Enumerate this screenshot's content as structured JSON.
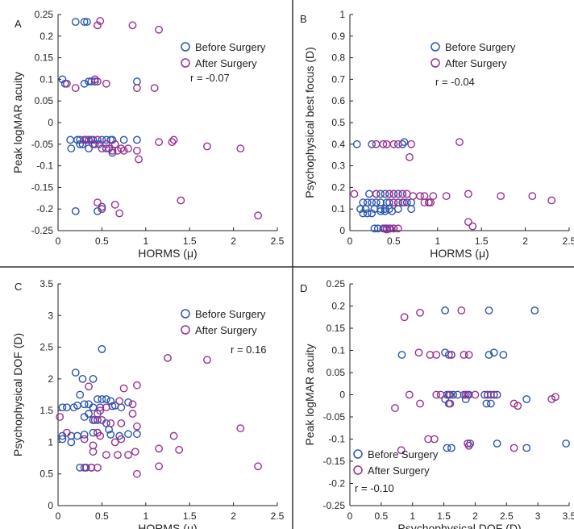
{
  "colors": {
    "before": "#2a55b0",
    "after": "#9a2f8f",
    "axis": "#222222",
    "divider": "#333333"
  },
  "chart_data": [
    {
      "panel": "A",
      "type": "scatter",
      "xlabel": "HORMS (μ)",
      "ylabel": "Peak logMAR acuity",
      "xlim": [
        0,
        2.5
      ],
      "ylim": [
        -0.25,
        0.25
      ],
      "xticks": [
        "0",
        "0.5",
        "1",
        "1.5",
        "2",
        "2.5"
      ],
      "yticks": [
        "-0.25",
        "-0.2",
        "-0.15",
        "-0.1",
        "-0.05",
        "0",
        "0.05",
        "0.1",
        "0.15",
        "0.2",
        "0.25"
      ],
      "annotation": "r = -0.07",
      "legend_position": "top-right",
      "series": [
        {
          "name": "Before Surgery",
          "color": "#2a55b0",
          "x": [
            0.2,
            0.3,
            0.33,
            0.05,
            0.08,
            0.3,
            0.35,
            0.38,
            0.42,
            0.9,
            0.14,
            0.22,
            0.25,
            0.3,
            0.32,
            0.35,
            0.38,
            0.4,
            0.45,
            0.5,
            0.55,
            0.6,
            0.62,
            0.75,
            0.9,
            0.15,
            0.25,
            0.28,
            0.35,
            0.42,
            0.47,
            0.55,
            0.62,
            0.2,
            0.45,
            0.5
          ],
          "y": [
            0.233,
            0.233,
            0.233,
            0.1,
            0.09,
            0.09,
            0.095,
            0.095,
            0.095,
            0.095,
            -0.04,
            -0.04,
            -0.04,
            -0.04,
            -0.04,
            -0.04,
            -0.04,
            -0.04,
            -0.04,
            -0.04,
            -0.04,
            -0.04,
            -0.04,
            -0.04,
            -0.04,
            -0.06,
            -0.05,
            -0.05,
            -0.06,
            -0.05,
            -0.05,
            -0.06,
            -0.07,
            -0.205,
            -0.205,
            -0.195
          ]
        },
        {
          "name": "After Surgery",
          "color": "#9a2f8f",
          "x": [
            0.48,
            0.45,
            0.85,
            1.15,
            0.1,
            0.2,
            0.42,
            0.45,
            0.55,
            0.9,
            1.1,
            0.3,
            0.35,
            0.45,
            0.55,
            0.65,
            0.72,
            0.8,
            1.15,
            1.3,
            1.7,
            2.08,
            0.4,
            0.5,
            0.58,
            0.62,
            0.68,
            0.75,
            0.9,
            0.92,
            1.32,
            0.45,
            0.5,
            0.65,
            0.7,
            1.4,
            2.28
          ],
          "y": [
            0.235,
            0.225,
            0.225,
            0.215,
            0.09,
            0.08,
            0.1,
            0.095,
            0.09,
            0.08,
            0.08,
            -0.04,
            -0.04,
            -0.04,
            -0.05,
            -0.05,
            -0.06,
            -0.06,
            -0.045,
            -0.045,
            -0.055,
            -0.06,
            -0.05,
            -0.06,
            -0.06,
            -0.065,
            -0.065,
            -0.065,
            -0.065,
            -0.085,
            -0.04,
            -0.185,
            -0.2,
            -0.19,
            -0.21,
            -0.18,
            -0.215
          ]
        }
      ]
    },
    {
      "panel": "B",
      "type": "scatter",
      "xlabel": "HORMS (μ)",
      "ylabel": "Psychophysical best focus (D)",
      "xlim": [
        0,
        2.5
      ],
      "ylim": [
        0,
        1
      ],
      "xticks": [
        "0",
        "0.5",
        "1",
        "1.5",
        "2",
        "2.5"
      ],
      "yticks": [
        "0",
        "0.1",
        "0.2",
        "0.3",
        "0.4",
        "0.5",
        "0.6",
        "0.7",
        "0.8",
        "0.9",
        "1"
      ],
      "annotation": "r = -0.04",
      "legend_position": "top-right",
      "series": [
        {
          "name": "Before Surgery",
          "color": "#2a55b0",
          "x": [
            0.08,
            0.25,
            0.6,
            0.62,
            0.15,
            0.2,
            0.25,
            0.3,
            0.35,
            0.42,
            0.45,
            0.5,
            0.55,
            0.6,
            0.65,
            0.7,
            0.9,
            0.22,
            0.3,
            0.35,
            0.4,
            0.45,
            0.5,
            0.55,
            0.6,
            0.12,
            0.18,
            0.28,
            0.35,
            0.4,
            0.45,
            0.55,
            0.7,
            0.15,
            0.2,
            0.25,
            0.35,
            0.4,
            0.48,
            0.28,
            0.32,
            0.38,
            0.42,
            0.46,
            0.5
          ],
          "y": [
            0.4,
            0.4,
            0.4,
            0.41,
            0.13,
            0.13,
            0.13,
            0.13,
            0.13,
            0.13,
            0.13,
            0.13,
            0.13,
            0.13,
            0.13,
            0.13,
            0.13,
            0.17,
            0.17,
            0.17,
            0.17,
            0.17,
            0.17,
            0.17,
            0.17,
            0.1,
            0.1,
            0.1,
            0.1,
            0.1,
            0.1,
            0.1,
            0.1,
            0.08,
            0.08,
            0.08,
            0.09,
            0.09,
            0.09,
            0.01,
            0.01,
            0.01,
            0.01,
            0.01,
            0.01
          ]
        },
        {
          "name": "After Surgery",
          "color": "#9a2f8f",
          "x": [
            0.3,
            0.38,
            0.42,
            0.5,
            0.55,
            0.7,
            1.25,
            0.05,
            0.3,
            0.45,
            0.5,
            0.6,
            0.65,
            0.72,
            0.8,
            0.85,
            0.95,
            1.1,
            1.35,
            1.72,
            2.08,
            2.3,
            0.5,
            0.55,
            0.62,
            0.85,
            0.9,
            0.92,
            0.4,
            0.45,
            0.5,
            0.55,
            0.42,
            0.68,
            1.35,
            1.4
          ],
          "y": [
            0.4,
            0.4,
            0.4,
            0.4,
            0.4,
            0.4,
            0.41,
            0.17,
            0.17,
            0.17,
            0.17,
            0.17,
            0.17,
            0.16,
            0.16,
            0.16,
            0.16,
            0.16,
            0.17,
            0.16,
            0.16,
            0.14,
            0.13,
            0.13,
            0.13,
            0.13,
            0.13,
            0.13,
            0.01,
            0.01,
            0.01,
            0.01,
            0.005,
            0.34,
            0.04,
            0.02
          ]
        }
      ]
    },
    {
      "panel": "C",
      "type": "scatter",
      "xlabel": "HORMS (μ)",
      "ylabel": "Psychophysical DOF (D)",
      "xlim": [
        0,
        2.5
      ],
      "ylim": [
        0,
        3.5
      ],
      "xticks": [
        "0",
        "0.5",
        "1",
        "1.5",
        "2",
        "2.5"
      ],
      "yticks": [
        "0",
        "0.5",
        "1",
        "1.5",
        "2",
        "2.5",
        "3",
        "3.5"
      ],
      "annotation": "r = 0.16",
      "legend_position": "top-right",
      "series": [
        {
          "name": "Before Surgery",
          "color": "#2a55b0",
          "x": [
            0.5,
            0.2,
            0.28,
            0.4,
            0.25,
            0.45,
            0.5,
            0.55,
            0.6,
            0.8,
            0.05,
            0.1,
            0.18,
            0.22,
            0.3,
            0.35,
            0.4,
            0.48,
            0.62,
            0.65,
            0.72,
            0.3,
            0.35,
            0.4,
            0.45,
            0.55,
            0.05,
            0.15,
            0.22,
            0.3,
            0.4,
            0.45,
            0.6,
            0.7,
            0.8,
            0.9,
            0.25,
            0.32,
            0.38,
            0.15,
            0.05,
            0.58
          ],
          "y": [
            2.47,
            2.1,
            2.0,
            2.0,
            1.75,
            1.68,
            1.68,
            1.68,
            1.65,
            1.63,
            1.55,
            1.55,
            1.55,
            1.58,
            1.6,
            1.6,
            1.55,
            1.55,
            1.57,
            1.58,
            1.55,
            1.4,
            1.45,
            1.35,
            1.35,
            1.3,
            1.1,
            1.1,
            1.1,
            1.12,
            1.15,
            1.15,
            1.12,
            1.1,
            1.13,
            1.13,
            0.6,
            0.6,
            0.6,
            1.0,
            1.05,
            1.2
          ]
        },
        {
          "name": "After Surgery",
          "color": "#9a2f8f",
          "x": [
            1.25,
            1.7,
            0.35,
            0.9,
            0.75,
            0.85,
            0.7,
            0.55,
            0.48,
            0.45,
            0.42,
            0.1,
            0.02,
            0.5,
            0.6,
            0.72,
            0.85,
            0.9,
            1.32,
            1.15,
            0.3,
            0.4,
            0.48,
            0.65,
            0.72,
            2.08,
            0.38,
            0.45,
            0.55,
            0.8,
            0.88,
            1.15,
            1.38,
            0.4,
            0.68,
            0.9,
            2.28,
            0.3,
            0.45
          ],
          "y": [
            2.33,
            2.3,
            1.88,
            1.9,
            1.85,
            1.6,
            1.65,
            1.55,
            1.5,
            1.45,
            1.35,
            1.15,
            1.4,
            1.35,
            1.3,
            1.3,
            1.45,
            1.25,
            1.1,
            0.9,
            1.05,
            0.95,
            1.1,
            1.0,
            1.05,
            1.22,
            0.6,
            0.6,
            0.8,
            0.8,
            0.85,
            0.62,
            0.88,
            0.85,
            0.8,
            0.5,
            0.62,
            0.6,
            1.15
          ]
        }
      ]
    },
    {
      "panel": "D",
      "type": "scatter",
      "xlabel": "Psychophysical DOF (D)",
      "ylabel": "Peak logMAR acuity",
      "xlim": [
        0,
        3.5
      ],
      "ylim": [
        -0.25,
        0.25
      ],
      "xticks": [
        "0",
        "0.5",
        "1",
        "1.5",
        "2",
        "2.5",
        "3",
        "3.5"
      ],
      "yticks": [
        "-0.25",
        "-0.2",
        "-0.15",
        "-0.1",
        "-0.05",
        "0",
        "0.05",
        "0.1",
        "0.15",
        "0.2",
        "0.25"
      ],
      "annotation": "r = -0.10",
      "legend_position": "bottom-left",
      "series": [
        {
          "name": "Before Surgery",
          "color": "#2a55b0",
          "x": [
            1.52,
            2.22,
            2.95,
            0.83,
            1.52,
            1.58,
            1.62,
            2.22,
            2.3,
            2.45,
            1.55,
            1.58,
            1.65,
            1.72,
            1.85,
            1.9,
            2.15,
            2.2,
            2.25,
            2.3,
            2.35,
            1.52,
            1.58,
            1.85,
            2.18,
            2.25,
            2.82,
            1.55,
            1.62,
            1.92,
            2.35,
            2.82,
            3.45
          ],
          "y": [
            0.19,
            0.19,
            0.19,
            0.09,
            0.095,
            0.09,
            0.09,
            0.09,
            0.095,
            0.09,
            0.0,
            0.0,
            0.0,
            0.0,
            0.0,
            0.0,
            0.0,
            0.0,
            0.0,
            0.0,
            0.0,
            -0.01,
            -0.02,
            -0.01,
            -0.02,
            -0.02,
            -0.01,
            -0.12,
            -0.12,
            -0.11,
            -0.11,
            -0.12,
            -0.11
          ]
        },
        {
          "name": "After Surgery",
          "color": "#9a2f8f",
          "x": [
            0.87,
            1.12,
            1.78,
            1.38,
            1.1,
            1.28,
            1.62,
            1.82,
            1.9,
            0.95,
            1.38,
            1.45,
            1.6,
            1.82,
            1.88,
            2.0,
            2.2,
            2.3,
            3.22,
            3.28,
            0.72,
            1.12,
            1.6,
            2.62,
            2.68,
            0.82,
            1.25,
            1.35,
            1.88,
            1.9,
            2.62
          ],
          "y": [
            0.175,
            0.185,
            0.19,
            0.09,
            0.095,
            0.09,
            0.09,
            0.09,
            0.09,
            0.0,
            0.0,
            0.0,
            0.0,
            0.0,
            0.0,
            0.0,
            0.0,
            0.0,
            -0.01,
            -0.005,
            -0.03,
            -0.02,
            -0.02,
            -0.02,
            -0.025,
            -0.125,
            -0.1,
            -0.1,
            -0.11,
            -0.115,
            -0.12
          ]
        }
      ]
    }
  ]
}
